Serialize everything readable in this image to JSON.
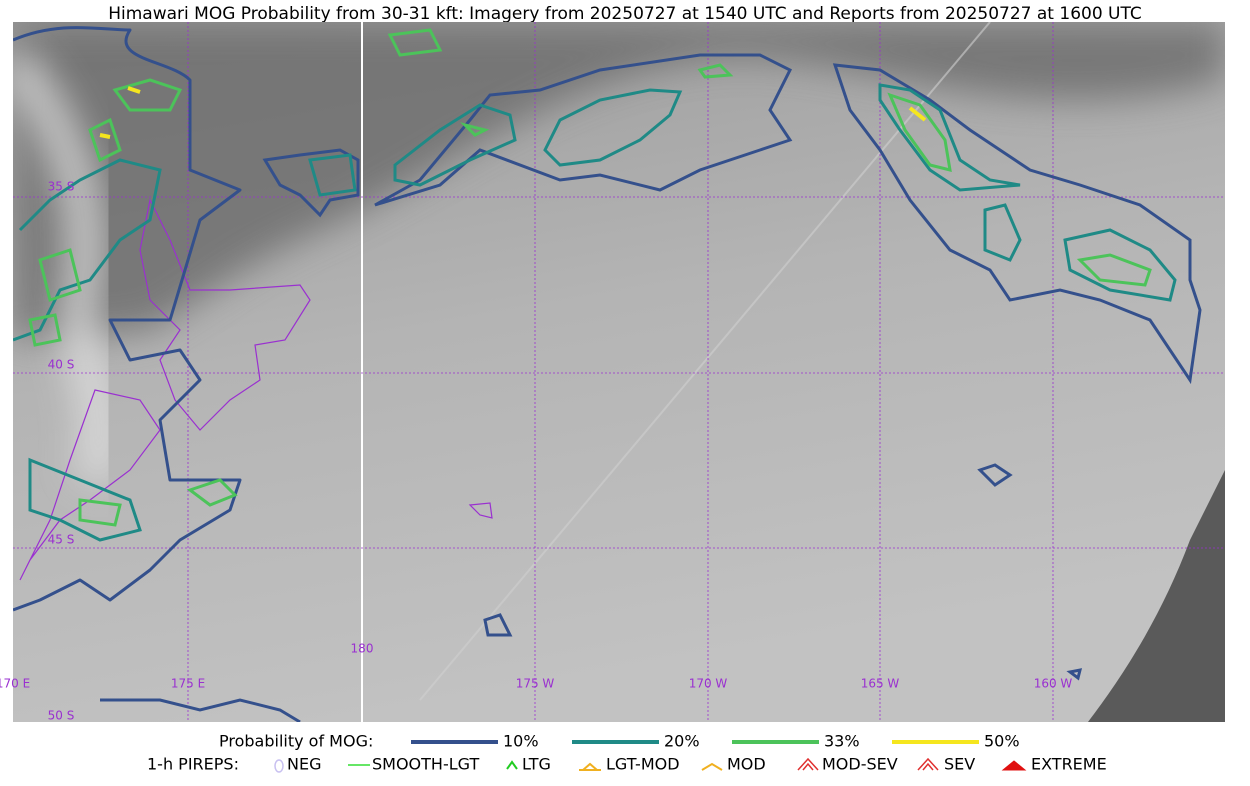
{
  "title": "Himawari MOG Probability from 30-31 kft: Imagery from 20250727 at 1540 UTC and Reports from 20250727 at 1600 UTC",
  "map": {
    "lon_labels": [
      "170 E",
      "175 E",
      "180",
      "175 W",
      "170 W",
      "165 W",
      "160 W"
    ],
    "lat_labels": [
      "35 S",
      "40 S",
      "45 S",
      "50 S"
    ]
  },
  "legend": {
    "probability": {
      "label": "Probability of MOG:",
      "items": [
        {
          "label": "10%",
          "color": "#34508c"
        },
        {
          "label": "20%",
          "color": "#1f8a86"
        },
        {
          "label": "33%",
          "color": "#4cc35a"
        },
        {
          "label": "50%",
          "color": "#f5e61e"
        }
      ]
    },
    "pireps": {
      "label": "1-h PIREPS:",
      "items": [
        {
          "label": "NEG",
          "color": "#c8c0f0"
        },
        {
          "label": "SMOOTH-LGT",
          "color": "#33dd33"
        },
        {
          "label": "LTG",
          "color": "#22cc22"
        },
        {
          "label": "LGT-MOD",
          "color": "#f0b020"
        },
        {
          "label": "MOD",
          "color": "#f0b020"
        },
        {
          "label": "MOD-SEV",
          "color": "#e03030"
        },
        {
          "label": "SEV",
          "color": "#e03030"
        },
        {
          "label": "EXTREME",
          "color": "#e01010"
        }
      ]
    }
  }
}
